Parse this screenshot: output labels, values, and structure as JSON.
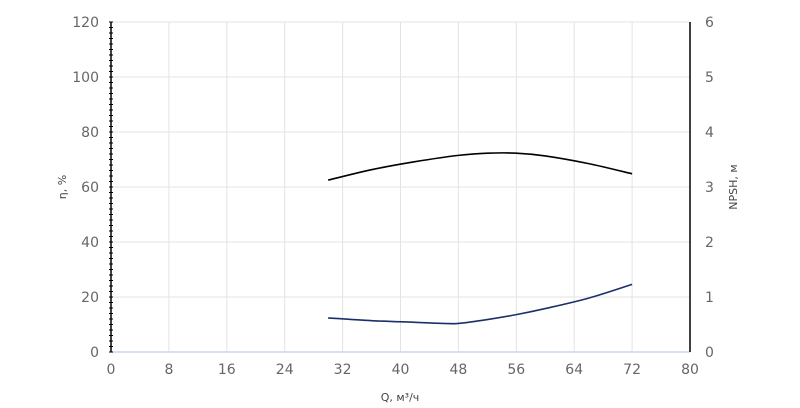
{
  "chart_data": {
    "type": "line",
    "xlabel": "Q, м³/ч",
    "ylabel_left": "η, %",
    "ylabel_right": "NPSH, м",
    "xlim": [
      0,
      80
    ],
    "ylim_left": [
      0,
      120
    ],
    "ylim_right": [
      0,
      6
    ],
    "x_ticks": [
      "0",
      "8",
      "16",
      "24",
      "32",
      "40",
      "48",
      "56",
      "64",
      "72",
      "80"
    ],
    "y_left_ticks": [
      "0",
      "20",
      "40",
      "60",
      "80",
      "100",
      "120"
    ],
    "y_right_ticks": [
      "0",
      "1",
      "2",
      "3",
      "4",
      "5",
      "6"
    ],
    "grid": true,
    "series": [
      {
        "axis": "left",
        "color": "#000000",
        "x": [
          30,
          36,
          42,
          48,
          52,
          56,
          60,
          66,
          72
        ],
        "y": [
          62.5,
          66.3,
          69.2,
          71.5,
          72.3,
          72.3,
          71.3,
          68.5,
          64.8
        ]
      },
      {
        "axis": "right",
        "color": "#1b2f6b",
        "x": [
          30,
          36,
          42,
          46,
          48,
          52,
          56,
          60,
          66,
          72
        ],
        "y": [
          0.62,
          0.57,
          0.54,
          0.52,
          0.52,
          0.59,
          0.68,
          0.79,
          0.98,
          1.23
        ]
      }
    ]
  }
}
